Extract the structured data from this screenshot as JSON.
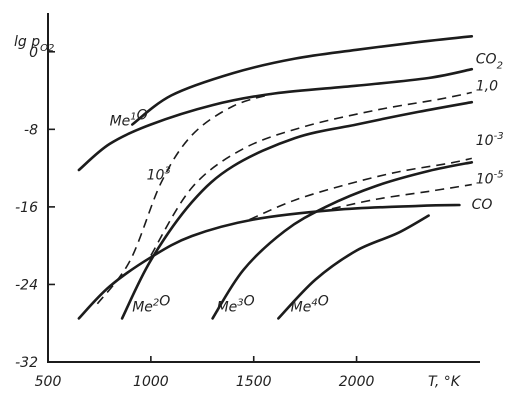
{
  "chart_data": {
    "type": "line",
    "title": "",
    "xlabel": "T, °K",
    "ylabel": "lg p_O2",
    "xlim": [
      500,
      2600
    ],
    "ylim": [
      -32,
      4
    ],
    "x_ticks": [
      "500",
      "1000",
      "1500",
      "2000"
    ],
    "y_ticks": [
      "0",
      "-8",
      "-16",
      "-24",
      "-32"
    ],
    "series": [
      {
        "name": "Me¹O",
        "style": "solid",
        "points": [
          [
            650,
            -12.2
          ],
          [
            800,
            -9.5
          ],
          [
            1000,
            -7.5
          ],
          [
            1300,
            -5.5
          ],
          [
            1600,
            -4.3
          ],
          [
            2000,
            -3.5
          ],
          [
            2350,
            -2.7
          ],
          [
            2560,
            -1.8
          ]
        ]
      },
      {
        "name": "CO₂",
        "style": "solid",
        "points": [
          [
            910,
            -7.5
          ],
          [
            1100,
            -4.5
          ],
          [
            1400,
            -2.2
          ],
          [
            1700,
            -0.7
          ],
          [
            2000,
            0.2
          ],
          [
            2300,
            1.0
          ],
          [
            2560,
            1.6
          ]
        ]
      },
      {
        "name": "Me²O",
        "style": "solid",
        "points": [
          [
            860,
            -27.5
          ],
          [
            1000,
            -21.5
          ],
          [
            1200,
            -15.5
          ],
          [
            1400,
            -11.8
          ],
          [
            1700,
            -8.9
          ],
          [
            2000,
            -7.5
          ],
          [
            2300,
            -6.2
          ],
          [
            2560,
            -5.2
          ]
        ]
      },
      {
        "name": "Me³O",
        "style": "solid",
        "points": [
          [
            1300,
            -27.5
          ],
          [
            1450,
            -22.5
          ],
          [
            1650,
            -18.5
          ],
          [
            1850,
            -16.0
          ],
          [
            2100,
            -13.8
          ],
          [
            2350,
            -12.3
          ],
          [
            2560,
            -11.4
          ]
        ]
      },
      {
        "name": "Me⁴O",
        "style": "solid",
        "points": [
          [
            1620,
            -27.5
          ],
          [
            1800,
            -23.5
          ],
          [
            2000,
            -20.5
          ],
          [
            2200,
            -18.7
          ],
          [
            2350,
            -16.9
          ]
        ]
      },
      {
        "name": "CO",
        "style": "solid",
        "points": [
          [
            650,
            -27.5
          ],
          [
            800,
            -24.2
          ],
          [
            1000,
            -21.2
          ],
          [
            1200,
            -19.0
          ],
          [
            1500,
            -17.3
          ],
          [
            1900,
            -16.3
          ],
          [
            2300,
            -15.9
          ],
          [
            2500,
            -15.8
          ]
        ]
      },
      {
        "name": "10³",
        "style": "dashed",
        "points": [
          [
            740,
            -26.0
          ],
          [
            900,
            -21.5
          ],
          [
            1050,
            -13.5
          ],
          [
            1200,
            -8.6
          ],
          [
            1400,
            -5.6
          ],
          [
            1600,
            -4.3
          ]
        ]
      },
      {
        "name": "1,0",
        "style": "dashed",
        "points": [
          [
            1000,
            -21.0
          ],
          [
            1200,
            -14.0
          ],
          [
            1450,
            -10.0
          ],
          [
            1750,
            -7.7
          ],
          [
            2100,
            -6.0
          ],
          [
            2400,
            -4.9
          ],
          [
            2560,
            -4.2
          ]
        ]
      },
      {
        "name": "10⁻³",
        "style": "dashed",
        "points": [
          [
            1480,
            -17.3
          ],
          [
            1700,
            -15.3
          ],
          [
            1950,
            -13.7
          ],
          [
            2200,
            -12.4
          ],
          [
            2450,
            -11.5
          ],
          [
            2560,
            -11.0
          ]
        ]
      },
      {
        "name": "10⁻⁵",
        "style": "dashed",
        "points": [
          [
            1880,
            -16.2
          ],
          [
            2100,
            -15.2
          ],
          [
            2350,
            -14.4
          ],
          [
            2560,
            -13.7
          ]
        ]
      }
    ]
  }
}
